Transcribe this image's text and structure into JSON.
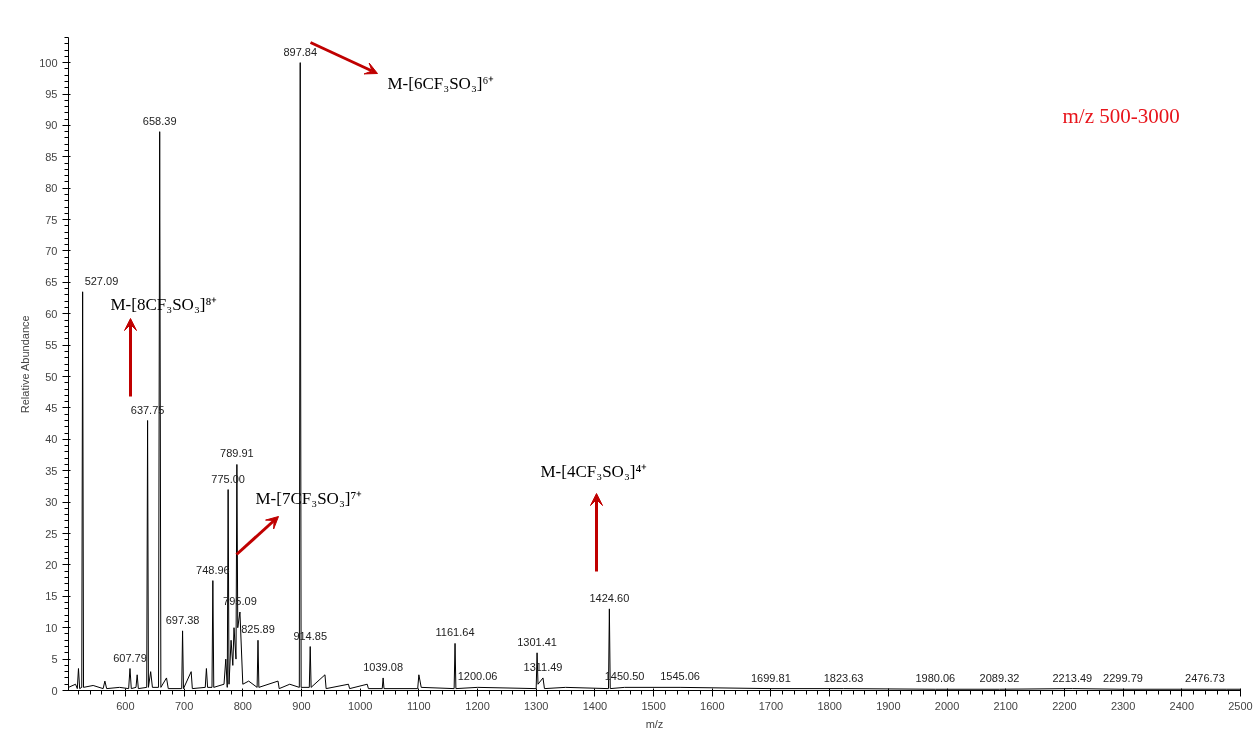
{
  "chart_data": {
    "type": "line",
    "xlabel": "m/z",
    "ylabel": "Relative Abundance",
    "xlim": [
      503,
      2500
    ],
    "ylim": [
      0,
      104
    ],
    "xticks": [
      600,
      700,
      800,
      900,
      1000,
      1100,
      1200,
      1300,
      1400,
      1500,
      1600,
      1700,
      1800,
      1900,
      2000,
      2100,
      2200,
      2300,
      2400,
      2500
    ],
    "yticks": [
      0,
      5,
      10,
      15,
      20,
      25,
      30,
      35,
      40,
      45,
      50,
      55,
      60,
      65,
      70,
      75,
      80,
      85,
      90,
      95,
      100
    ],
    "grid": false,
    "marker": "none",
    "line_style": "solid",
    "series": [
      {
        "color": "#000000",
        "x": [
          503,
          515,
          518,
          520,
          522,
          525.6,
          527.09,
          528.6,
          545,
          562,
          565,
          568,
          590,
          605.5,
          607.79,
          610,
          618,
          620,
          622,
          636.3,
          637.75,
          639.2,
          643,
          646,
          656.4,
          658.39,
          660.4,
          670,
          673,
          695.9,
          697.38,
          698.9,
          712,
          714,
          736,
          738,
          740,
          747.5,
          748.96,
          750.5,
          768,
          771,
          773.5,
          775.0,
          776.5,
          780,
          783,
          785,
          788.4,
          789.91,
          791.4,
          795.09,
          800,
          810,
          824.4,
          825.89,
          827.4,
          860,
          862,
          880,
          896.3,
          897.84,
          899.4,
          913.3,
          914.85,
          916.4,
          940,
          942,
          980,
          982,
          1012,
          1014,
          1037.6,
          1039.08,
          1040.6,
          1098,
          1100,
          1104,
          1160.1,
          1161.64,
          1163.1,
          1200.06,
          1299.9,
          1301.41,
          1303,
          1311.49,
          1314,
          1350,
          1423.1,
          1424.6,
          1426.1,
          1450.5,
          1545.06,
          1699.81,
          1823.63,
          1980.06,
          2089.32,
          2213.49,
          2299.79,
          2476.73,
          2500
        ],
        "values": [
          0.5,
          1,
          0.3,
          3.5,
          0.3,
          0.5,
          63.5,
          0.5,
          0.8,
          0.3,
          1.5,
          0.3,
          0.5,
          0.3,
          3.5,
          0.3,
          0.5,
          2.5,
          0.3,
          0.5,
          43,
          0.5,
          3,
          0.5,
          0.5,
          89,
          0.5,
          2,
          0.3,
          0.3,
          9.5,
          0.3,
          3,
          0.3,
          0.5,
          3.5,
          0.5,
          0.5,
          17.5,
          0.5,
          1,
          5,
          0.5,
          32,
          1,
          8,
          4,
          10,
          5,
          36,
          10,
          12.5,
          1,
          1.5,
          0.5,
          8,
          0.5,
          1.5,
          0.3,
          1,
          0.5,
          100,
          0.5,
          0.5,
          7,
          0.5,
          2.5,
          0.3,
          1,
          0.3,
          1,
          0.3,
          0.3,
          2,
          0.3,
          0.3,
          2.5,
          0.5,
          0.3,
          7.5,
          0.3,
          0.5,
          0.3,
          6,
          1,
          2,
          0.3,
          0.5,
          0.3,
          13,
          0.3,
          0.5,
          0.5,
          0.3,
          0.3,
          0.2,
          0.2,
          0.3,
          0.2,
          0.2,
          0.2
        ]
      }
    ],
    "annotations": [
      {
        "text": "527.09",
        "x": 527.09,
        "y": 63.5
      },
      {
        "text": "607.79",
        "x": 607.79,
        "y": 3.5
      },
      {
        "text": "637.75",
        "x": 637.75,
        "y": 43
      },
      {
        "text": "658.39",
        "x": 658.39,
        "y": 89
      },
      {
        "text": "697.38",
        "x": 697.38,
        "y": 9.5
      },
      {
        "text": "748.96",
        "x": 748.96,
        "y": 17.5
      },
      {
        "text": "775.00",
        "x": 775.0,
        "y": 32
      },
      {
        "text": "789.91",
        "x": 789.91,
        "y": 36
      },
      {
        "text": "795.09",
        "x": 795.09,
        "y": 12.5
      },
      {
        "text": "825.89",
        "x": 825.89,
        "y": 8
      },
      {
        "text": "897.84",
        "x": 897.84,
        "y": 100
      },
      {
        "text": "914.85",
        "x": 914.85,
        "y": 7
      },
      {
        "text": "1039.08",
        "x": 1039.08,
        "y": 2
      },
      {
        "text": "1161.64",
        "x": 1161.64,
        "y": 7.5
      },
      {
        "text": "1200.06",
        "x": 1200.06,
        "y": 0.5
      },
      {
        "text": "1301.41",
        "x": 1301.41,
        "y": 6
      },
      {
        "text": "1311.49",
        "x": 1311.49,
        "y": 2
      },
      {
        "text": "1424.60",
        "x": 1424.6,
        "y": 13
      },
      {
        "text": "1450.50",
        "x": 1450.5,
        "y": 0.5
      },
      {
        "text": "1545.06",
        "x": 1545.06,
        "y": 0.5
      },
      {
        "text": "1699.81",
        "x": 1699.81,
        "y": 0.3
      },
      {
        "text": "1823.63",
        "x": 1823.63,
        "y": 0.3
      },
      {
        "text": "1980.06",
        "x": 1980.06,
        "y": 0.2
      },
      {
        "text": "2089.32",
        "x": 2089.32,
        "y": 0.2
      },
      {
        "text": "2213.49",
        "x": 2213.49,
        "y": 0.3
      },
      {
        "text": "2299.79",
        "x": 2299.79,
        "y": 0.2
      },
      {
        "text": "2476.73",
        "x": 2476.73,
        "y": 0.2
      },
      "M-[8CF₃SO₃]⁸⁺",
      "M-[7CF₃SO₃]⁷⁺",
      "M-[6CF₃SO₃]⁶⁺",
      "M-[4CF₃SO₃]⁴⁺",
      "m/z 500-3000"
    ]
  }
}
